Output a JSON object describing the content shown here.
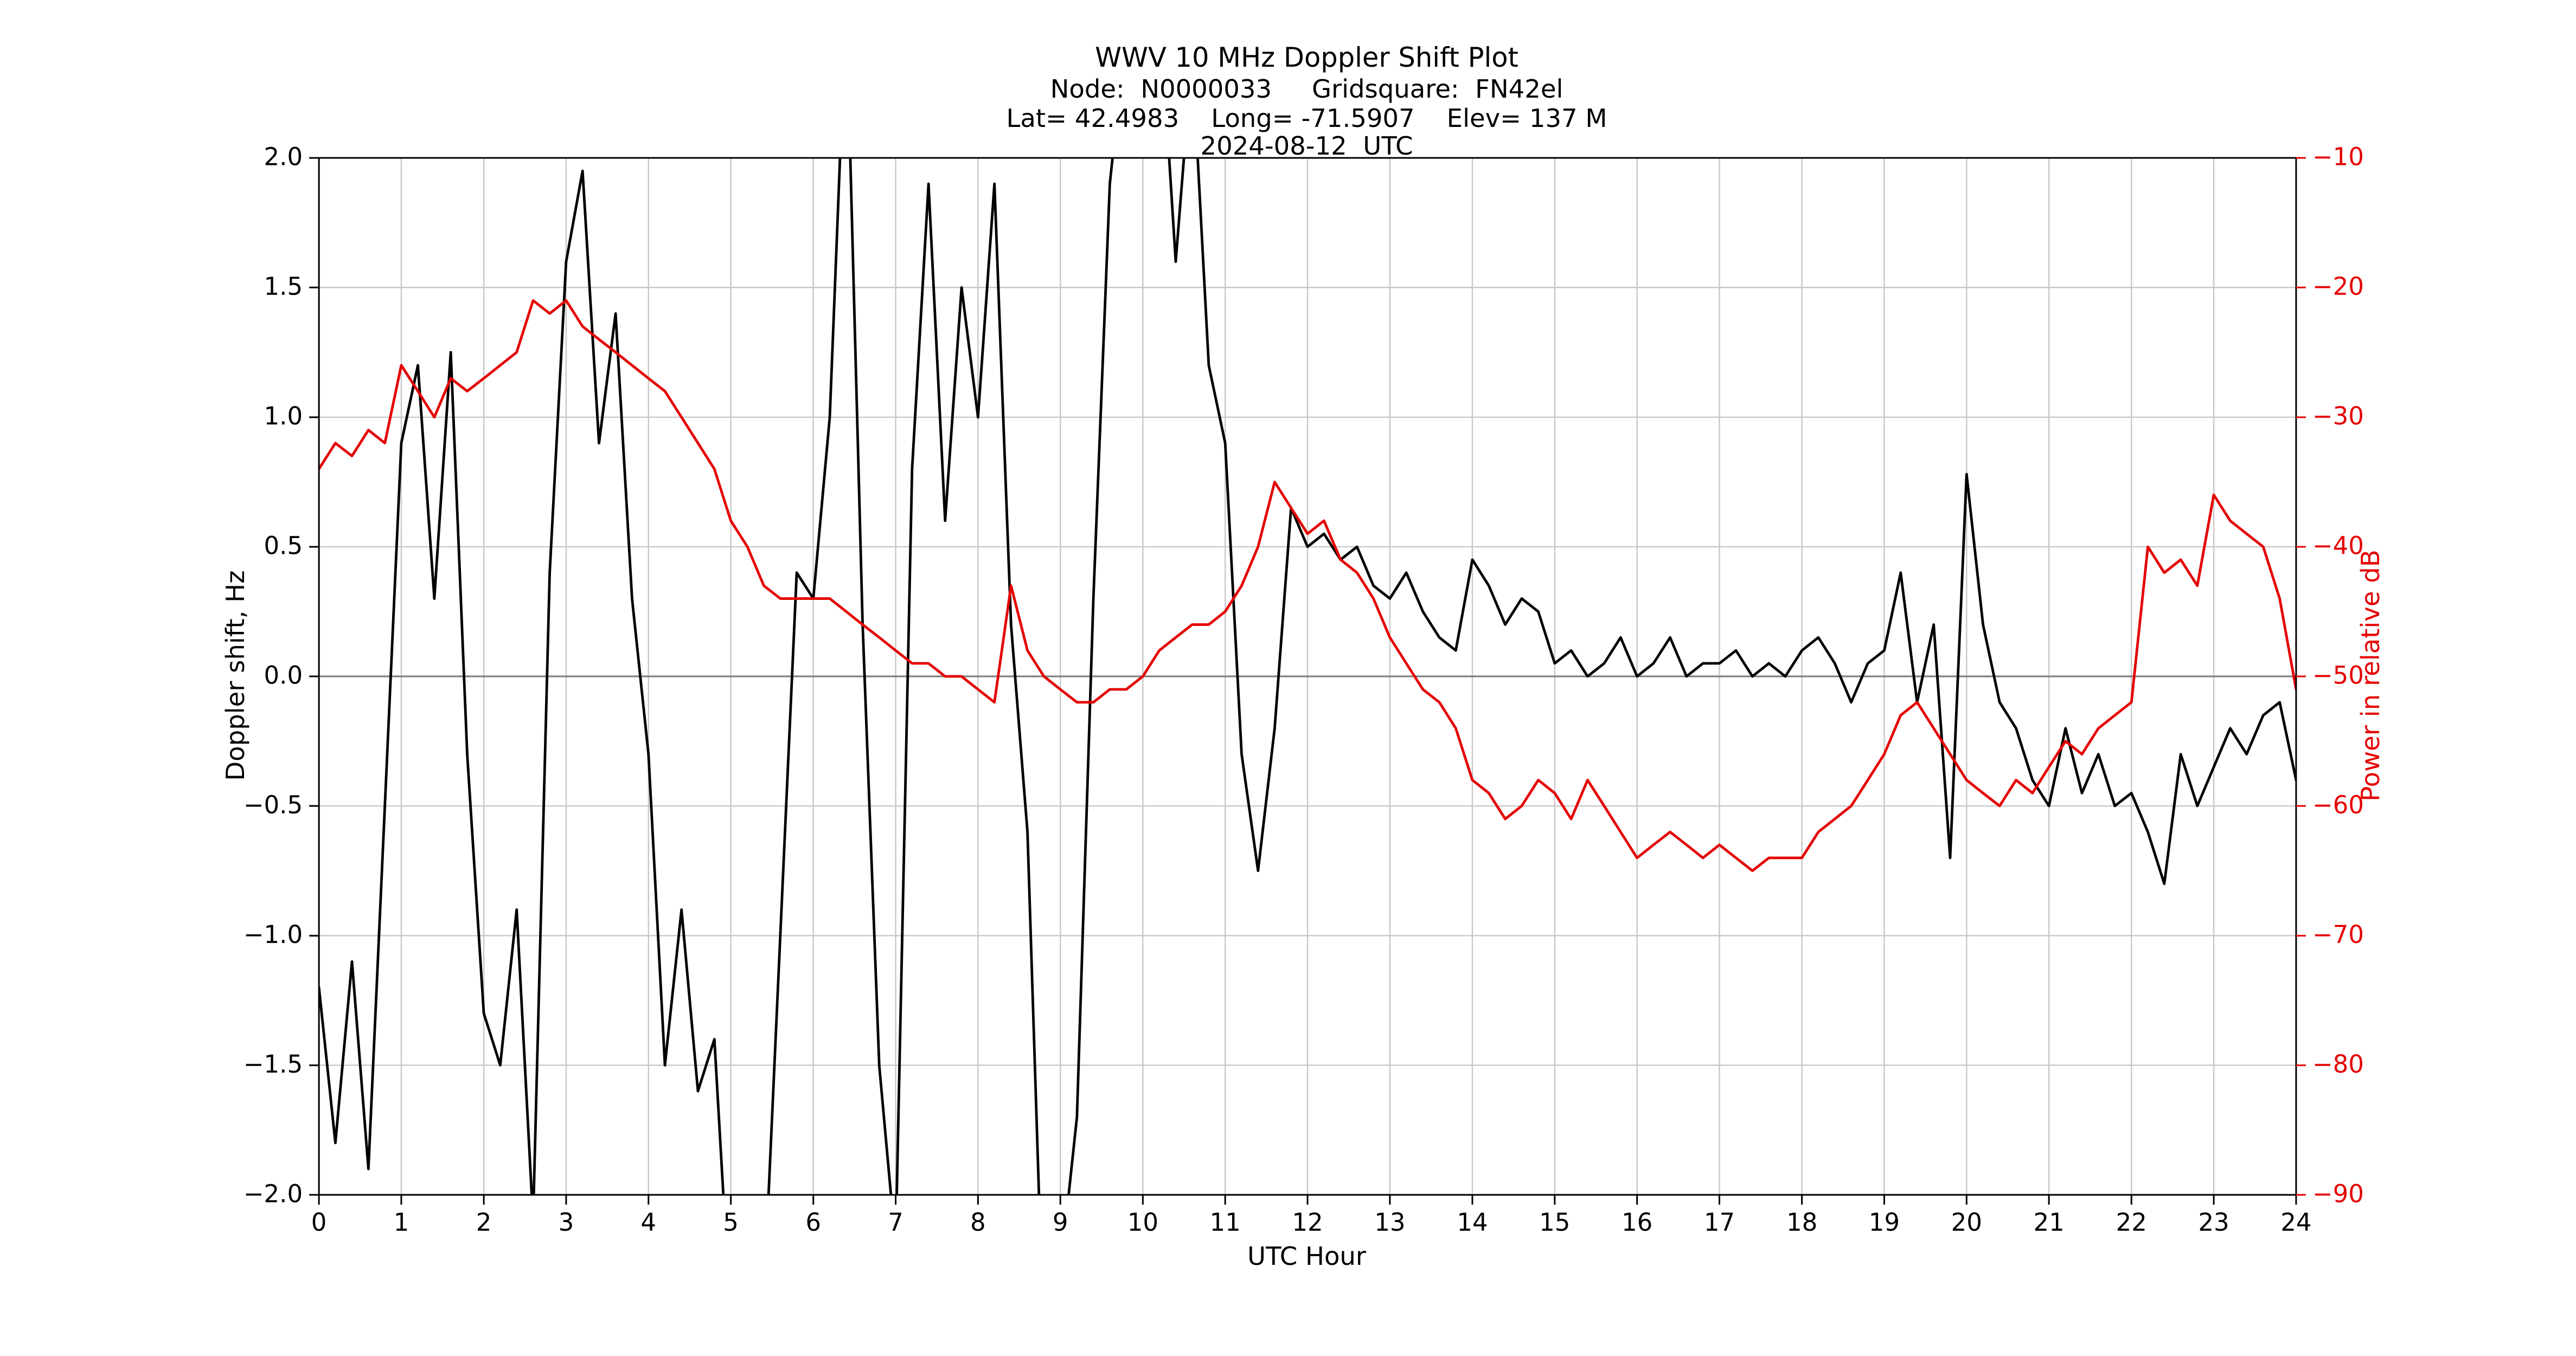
{
  "accent_colors": {
    "doppler_trace": "#000000",
    "power_trace": "#e50000",
    "grid": "#c8c8c8",
    "zero_line": "#808080"
  },
  "chart_data": {
    "type": "line",
    "title": "WWV 10 MHz Doppler Shift Plot",
    "subtitle_lines": [
      "Node:  N0000033     Gridsquare:  FN42el",
      "Lat= 42.4983    Long= -71.5907    Elev= 137 M",
      "2024-08-12  UTC"
    ],
    "xlabel": "UTC Hour",
    "ylabel_left": "Doppler shift, Hz",
    "ylabel_right": "Power in relative dB",
    "xlim": [
      0,
      24
    ],
    "ylim_left": [
      -2.0,
      2.0
    ],
    "ylim_right": [
      -90,
      -10
    ],
    "x_ticks": [
      0,
      1,
      2,
      3,
      4,
      5,
      6,
      7,
      8,
      9,
      10,
      11,
      12,
      13,
      14,
      15,
      16,
      17,
      18,
      19,
      20,
      21,
      22,
      23,
      24
    ],
    "y_ticks_left": [
      2.0,
      1.5,
      1.0,
      0.5,
      0.0,
      -0.5,
      -1.0,
      -1.5,
      -2.0
    ],
    "y_ticks_right": [
      -10,
      -20,
      -30,
      -40,
      -50,
      -60,
      -70,
      -80,
      -90
    ],
    "grid": true,
    "legend": "none",
    "x": [
      0,
      0.2,
      0.4,
      0.6,
      0.8,
      1,
      1.2,
      1.4,
      1.6,
      1.8,
      2,
      2.2,
      2.4,
      2.6,
      2.8,
      3,
      3.2,
      3.4,
      3.6,
      3.8,
      4,
      4.2,
      4.4,
      4.6,
      4.8,
      5,
      5.2,
      5.4,
      5.6,
      5.8,
      6,
      6.2,
      6.4,
      6.6,
      6.8,
      7,
      7.2,
      7.4,
      7.6,
      7.8,
      8,
      8.2,
      8.4,
      8.6,
      8.8,
      9,
      9.2,
      9.4,
      9.6,
      9.8,
      10,
      10.2,
      10.4,
      10.6,
      10.8,
      11,
      11.2,
      11.4,
      11.6,
      11.8,
      12,
      12.2,
      12.4,
      12.6,
      12.8,
      13,
      13.2,
      13.4,
      13.6,
      13.8,
      14,
      14.2,
      14.4,
      14.6,
      14.8,
      15,
      15.2,
      15.4,
      15.6,
      15.8,
      16,
      16.2,
      16.4,
      16.6,
      16.8,
      17,
      17.2,
      17.4,
      17.6,
      17.8,
      18,
      18.2,
      18.4,
      18.6,
      18.8,
      19,
      19.2,
      19.4,
      19.6,
      19.8,
      20,
      20.2,
      20.4,
      20.6,
      20.8,
      21,
      21.2,
      21.4,
      21.6,
      21.8,
      22,
      22.2,
      22.4,
      22.6,
      22.8,
      23,
      23.2,
      23.4,
      23.6,
      23.8,
      24
    ],
    "series": [
      {
        "name": "Doppler shift (Hz)",
        "axis": "left",
        "color": "#000000",
        "values": [
          -1.2,
          -1.8,
          -1.1,
          -1.9,
          -0.5,
          0.9,
          1.2,
          0.3,
          1.25,
          -0.3,
          -1.3,
          -1.5,
          -0.9,
          -2.1,
          0.4,
          1.6,
          1.95,
          0.9,
          1.4,
          0.3,
          -0.3,
          -1.5,
          -0.9,
          -1.6,
          -1.4,
          -2.5,
          -2.8,
          -2.4,
          -1,
          0.4,
          0.3,
          1,
          2.6,
          0.2,
          -1.5,
          -2.2,
          0.8,
          1.9,
          0.6,
          1.5,
          1,
          1.9,
          0.2,
          -0.6,
          -2.6,
          -2.3,
          -1.7,
          0.3,
          1.9,
          2.5,
          2.8,
          2.6,
          1.6,
          2.4,
          1.2,
          0.9,
          -0.3,
          -0.75,
          -0.2,
          0.65,
          0.5,
          0.55,
          0.45,
          0.5,
          0.35,
          0.3,
          0.4,
          0.25,
          0.15,
          0.1,
          0.45,
          0.35,
          0.2,
          0.3,
          0.25,
          0.05,
          0.1,
          0,
          0.05,
          0.15,
          0,
          0.05,
          0.15,
          0,
          0.05,
          0.05,
          0.1,
          0,
          0.05,
          0,
          0.1,
          0.15,
          0.05,
          -0.1,
          0.05,
          0.1,
          0.4,
          -0.1,
          0.2,
          -0.7,
          0.78,
          0.2,
          -0.1,
          -0.2,
          -0.4,
          -0.5,
          -0.2,
          -0.45,
          -0.3,
          -0.5,
          -0.45,
          -0.6,
          -0.8,
          -0.3,
          -0.5,
          -0.35,
          -0.2,
          -0.3,
          -0.15,
          -0.1,
          -0.4
        ]
      },
      {
        "name": "Power (relative dB)",
        "axis": "right",
        "color": "#e50000",
        "values": [
          -34,
          -32,
          -33,
          -31,
          -32,
          -26,
          -28,
          -30,
          -27,
          -28,
          -27,
          -26,
          -25,
          -21,
          -22,
          -21,
          -23,
          -24,
          -25,
          -26,
          -27,
          -28,
          -30,
          -32,
          -34,
          -38,
          -40,
          -43,
          -44,
          -44,
          -44,
          -44,
          -45,
          -46,
          -47,
          -48,
          -49,
          -49,
          -50,
          -50,
          -51,
          -52,
          -43,
          -48,
          -50,
          -51,
          -52,
          -52,
          -51,
          -51,
          -50,
          -48,
          -47,
          -46,
          -46,
          -45,
          -43,
          -40,
          -35,
          -37,
          -39,
          -38,
          -41,
          -42,
          -44,
          -47,
          -49,
          -51,
          -52,
          -54,
          -58,
          -59,
          -61,
          -60,
          -58,
          -59,
          -61,
          -58,
          -60,
          -62,
          -64,
          -63,
          -62,
          -63,
          -64,
          -63,
          -64,
          -65,
          -64,
          -64,
          -64,
          -62,
          -61,
          -60,
          -58,
          -56,
          -53,
          -52,
          -54,
          -56,
          -58,
          -59,
          -60,
          -58,
          -59,
          -57,
          -55,
          -56,
          -54,
          -53,
          -52,
          -40,
          -42,
          -41,
          -43,
          -36,
          -38,
          -39,
          -40,
          -44,
          -51
        ]
      }
    ]
  }
}
